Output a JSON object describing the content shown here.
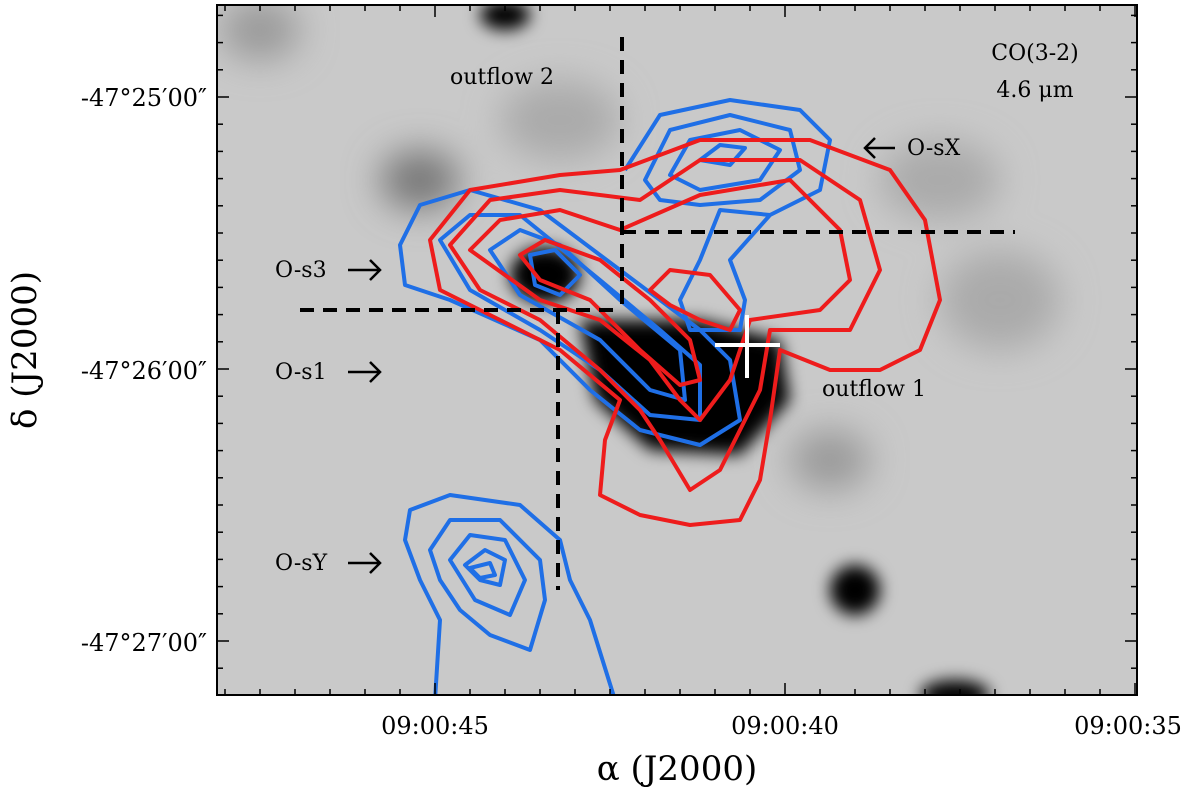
{
  "figure": {
    "xlabel": "α  (J2000)",
    "ylabel": "δ  (J2000)",
    "xticks": [
      "09:00:45",
      "09:00:40",
      "09:00:35"
    ],
    "yticks": [
      "-47°25′00″",
      "-47°26′00″",
      "-47°27′00″"
    ],
    "annotations": {
      "line": "CO(3-2)",
      "band": "4.6 μm",
      "outflow2": "outflow 2",
      "outflow1": "outflow 1",
      "osx": "O-sX",
      "os3": "O-s3",
      "os1": "O-s1",
      "osy": "O-sY"
    }
  }
}
